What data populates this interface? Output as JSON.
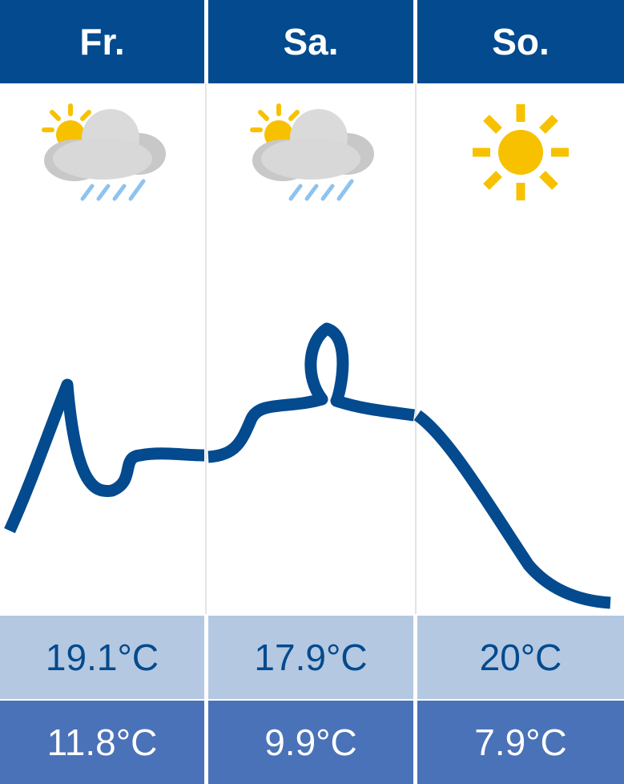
{
  "days": [
    {
      "label": "Fr.",
      "icon": "partly-cloudy-rain-icon",
      "max": "19.1°C",
      "min": "11.8°C"
    },
    {
      "label": "Sa.",
      "icon": "partly-cloudy-rain-icon",
      "max": "17.9°C",
      "min": "9.9°C"
    },
    {
      "label": "So.",
      "icon": "sun-icon",
      "max": "20°C",
      "min": "7.9°C"
    }
  ],
  "colors": {
    "header": "#034a8e",
    "max_row": "#b4c8e2",
    "min_row": "#4a72b8",
    "curve": "#034a8e",
    "sun": "#f7c100",
    "cloud": "#dcdcdc",
    "rain": "#8ec3f0"
  }
}
